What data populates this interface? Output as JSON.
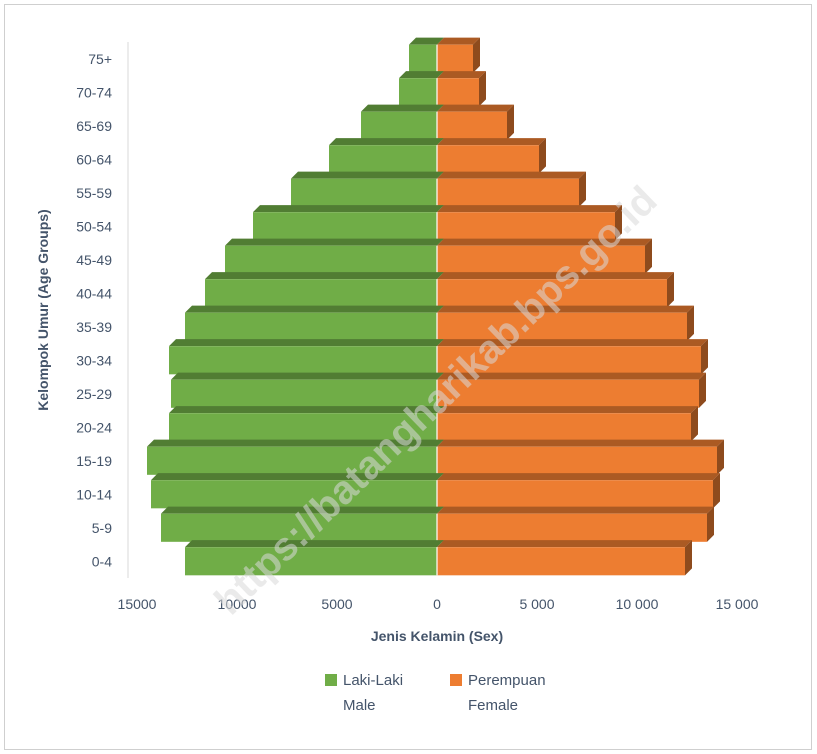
{
  "chart_data": {
    "type": "bar",
    "subtype": "population-pyramid",
    "categories": [
      "75+",
      "70-74",
      "65-69",
      "60-64",
      "55-59",
      "50-54",
      "45-49",
      "40-44",
      "35-39",
      "30-34",
      "25-29",
      "20-24",
      "15-19",
      "10-14",
      "5-9",
      "0-4"
    ],
    "series": [
      {
        "name": "Laki-Laki",
        "name_line2": "Male",
        "color": "#70ad47",
        "side": "left",
        "values": [
          1400,
          1900,
          3800,
          5400,
          7300,
          9200,
          10600,
          11600,
          12600,
          13400,
          13300,
          13400,
          14500,
          14300,
          13800,
          12600
        ]
      },
      {
        "name": "Perempuan",
        "name_line2": "Female",
        "color": "#ed7d31",
        "side": "right",
        "values": [
          1800,
          2100,
          3500,
          5100,
          7100,
          8900,
          10400,
          11500,
          12500,
          13200,
          13100,
          12700,
          14000,
          13800,
          13500,
          12400
        ]
      }
    ],
    "x_ticks_left": [
      "15000",
      "10000",
      "5000",
      "0"
    ],
    "x_ticks_right": [
      "5 000",
      "10 000",
      "15 000"
    ],
    "xlim": [
      -15000,
      15000
    ],
    "xlabel": "Jenis Kelamin (Sex)",
    "ylabel": "Kelompok Umur (Age Groups)",
    "legend_position": "bottom",
    "grid": false,
    "watermark": "https://batangharikab.bps.go.id"
  }
}
